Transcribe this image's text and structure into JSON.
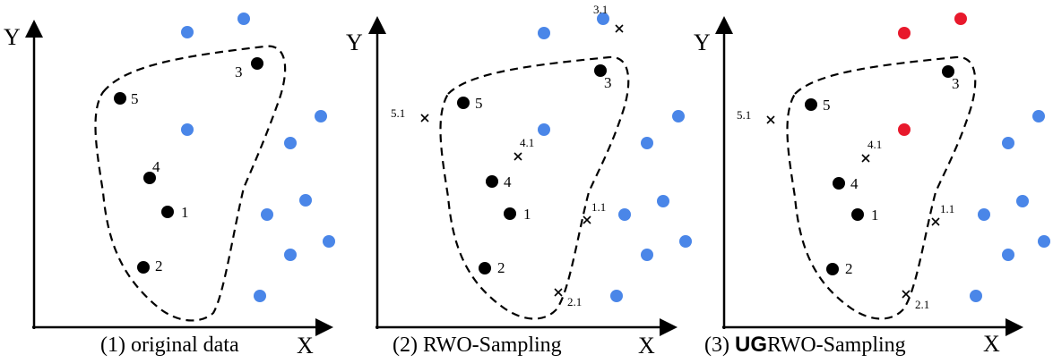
{
  "colors": {
    "axis": "#000000",
    "minority": "#000000",
    "majority": "#4a86e8",
    "ug": "#e8192c",
    "text": "#111111"
  },
  "panels": [
    {
      "id": "original",
      "caption_prefix": "(1) original data",
      "caption_bold": "",
      "caption_suffix": "",
      "axis_x": "X",
      "axis_y": "Y",
      "minority": [
        {
          "label": "1"
        },
        {
          "label": "2"
        },
        {
          "label": "3"
        },
        {
          "label": "4"
        },
        {
          "label": "5"
        }
      ],
      "synthetic": []
    },
    {
      "id": "rwo",
      "caption_prefix": "(2) RWO-Sampling",
      "caption_bold": "",
      "caption_suffix": "",
      "axis_x": "X",
      "axis_y": "Y",
      "minority": [
        {
          "label": "1"
        },
        {
          "label": "2"
        },
        {
          "label": "3"
        },
        {
          "label": "4"
        },
        {
          "label": "5"
        }
      ],
      "synthetic": [
        {
          "label": "1.1"
        },
        {
          "label": "2.1"
        },
        {
          "label": "3.1"
        },
        {
          "label": "4.1"
        },
        {
          "label": "5.1"
        }
      ]
    },
    {
      "id": "ugrwo",
      "caption_prefix": "(3) ",
      "caption_bold": "UG",
      "caption_suffix": "RWO-Sampling",
      "axis_x": "X",
      "axis_y": "Y",
      "minority": [
        {
          "label": "1"
        },
        {
          "label": "2"
        },
        {
          "label": "3"
        },
        {
          "label": "4"
        },
        {
          "label": "5"
        }
      ],
      "synthetic": [
        {
          "label": "1.1"
        },
        {
          "label": "2.1"
        },
        {
          "label": "4.1"
        },
        {
          "label": "5.1"
        }
      ]
    }
  ]
}
